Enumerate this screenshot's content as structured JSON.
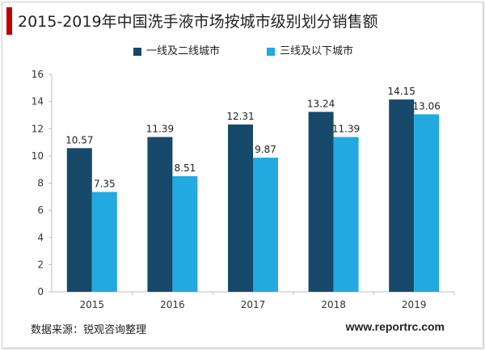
{
  "title": "2015-2019年中国洗手液市场按城市级别划分销售额",
  "source": "数据来源：锐观咨询整理",
  "website": "www.reportrc.com",
  "colors": {
    "accent": "#c00000",
    "series1": "#17496a",
    "series2": "#22a9e0"
  },
  "chart_data": {
    "type": "bar",
    "categories": [
      "2015",
      "2016",
      "2017",
      "2018",
      "2019"
    ],
    "series": [
      {
        "name": "一线及二线城市",
        "values": [
          10.57,
          11.39,
          12.31,
          13.24,
          14.15
        ],
        "labels": [
          "10.57",
          "11.39",
          "12.31",
          "13.24",
          "14.15"
        ]
      },
      {
        "name": "三线及以下城市",
        "values": [
          7.35,
          8.51,
          9.87,
          11.39,
          13.06
        ],
        "labels": [
          "7.35",
          "8.51",
          "9.87",
          "11.39",
          "13.06"
        ]
      }
    ],
    "yticks": [
      "0",
      "2",
      "4",
      "6",
      "8",
      "10",
      "12",
      "14",
      "16"
    ],
    "ylim": [
      0,
      16
    ],
    "grid": false,
    "legend_position": "top"
  }
}
